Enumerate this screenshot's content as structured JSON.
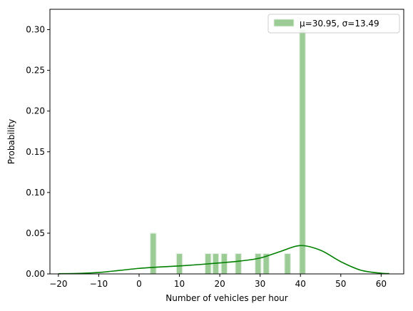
{
  "chart_data": {
    "type": "bar",
    "title": "",
    "xlabel": "Number of vehicles per hour",
    "ylabel": "Probability",
    "xlim": [
      -22.1,
      65.6
    ],
    "ylim": [
      0,
      0.325
    ],
    "xticks": [
      -20,
      -10,
      0,
      10,
      20,
      30,
      40,
      50,
      60
    ],
    "yticks": [
      0.0,
      0.05,
      0.1,
      0.15,
      0.2,
      0.25,
      0.3
    ],
    "ytick_labels": [
      "0.00",
      "0.05",
      "0.10",
      "0.15",
      "0.20",
      "0.25",
      "0.30"
    ],
    "grid": false,
    "legend": {
      "position": "top-right",
      "entries": [
        "μ=30.95, σ=13.49"
      ]
    },
    "histogram": {
      "series_name": "μ=30.95, σ=13.49",
      "color": "#9bcc96",
      "edge_color": "#e4f0e3",
      "bin_width": 1.5,
      "bins": [
        {
          "x": 3.5,
          "value": 0.05
        },
        {
          "x": 10.0,
          "value": 0.025
        },
        {
          "x": 17.1,
          "value": 0.025
        },
        {
          "x": 19.0,
          "value": 0.025
        },
        {
          "x": 21.1,
          "value": 0.025
        },
        {
          "x": 24.6,
          "value": 0.025
        },
        {
          "x": 29.5,
          "value": 0.025
        },
        {
          "x": 31.5,
          "value": 0.025
        },
        {
          "x": 36.8,
          "value": 0.025
        },
        {
          "x": 40.5,
          "value": 0.3
        }
      ]
    },
    "density_curve": {
      "type": "line",
      "color": "#008000",
      "x": [
        -20,
        -15,
        -10,
        -5,
        0,
        5,
        10,
        15,
        20,
        25,
        30,
        35,
        40,
        45,
        50,
        55,
        60,
        62
      ],
      "y": [
        0.0002,
        0.0006,
        0.0018,
        0.0042,
        0.0068,
        0.0085,
        0.0098,
        0.0115,
        0.0135,
        0.0158,
        0.0195,
        0.0275,
        0.0348,
        0.029,
        0.015,
        0.0045,
        0.0008,
        0.0004
      ]
    }
  }
}
